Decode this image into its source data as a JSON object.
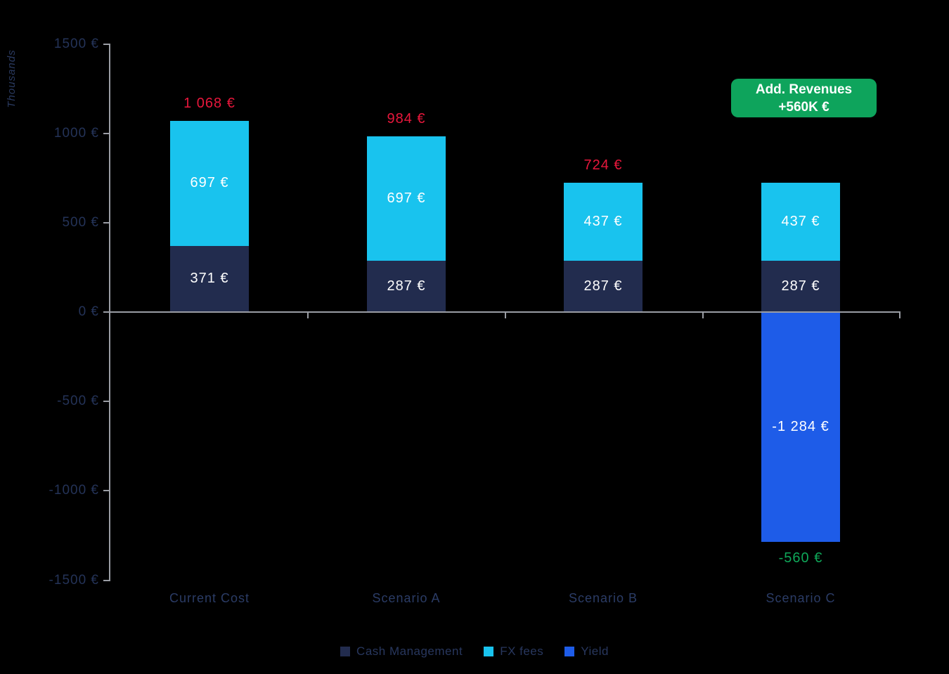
{
  "chart_data": {
    "type": "bar",
    "stacked": true,
    "title": "",
    "xlabel": "",
    "ylabel": "Thousands",
    "ylim": [
      -1500,
      1500
    ],
    "grid": false,
    "legend_position": "bottom",
    "y_ticks": [
      {
        "label": "1500 €",
        "value": 1500
      },
      {
        "label": "1000 €",
        "value": 1000
      },
      {
        "label": "500 €",
        "value": 500
      },
      {
        "label": "0 €",
        "value": 0
      },
      {
        "label": "-500 €",
        "value": -500
      },
      {
        "label": "-1000 €",
        "value": -1000
      },
      {
        "label": "-1500 €",
        "value": -1500
      }
    ],
    "categories": [
      "Current Cost",
      "Scenario A",
      "Scenario B",
      "Scenario C"
    ],
    "series": [
      {
        "name": "Cash Management",
        "color": "#222C4E",
        "values": [
          371,
          287,
          287,
          287
        ],
        "labels": [
          "371 €",
          "287 €",
          "287 €",
          "287 €"
        ]
      },
      {
        "name": "FX fees",
        "color": "#19C3EE",
        "values": [
          697,
          697,
          437,
          437
        ],
        "labels": [
          "697 €",
          "697 €",
          "437 €",
          "437 €"
        ]
      },
      {
        "name": "Yield",
        "color": "#1E5CE8",
        "values": [
          0,
          0,
          0,
          -1284
        ],
        "labels": [
          "",
          "",
          "",
          "-1 284 €"
        ]
      }
    ],
    "totals": [
      {
        "label": "1 068 €",
        "value": 1068,
        "color": "#E8173C"
      },
      {
        "label": "984 €",
        "value": 984,
        "color": "#E8173C"
      },
      {
        "label": "724 €",
        "value": 724,
        "color": "#E8173C"
      },
      {
        "label": "-560 €",
        "value": -560,
        "color": "#0FA759"
      }
    ]
  },
  "badge": {
    "line1": "Add. Revenues",
    "line2": "+560K €",
    "color": "#0EA45C"
  },
  "colors": {
    "background": "#000000",
    "axis": "#9A9DA4",
    "tick_text": "#243358",
    "category_text": "#2B3C66",
    "bar_label_text": "#FFFFFF"
  }
}
